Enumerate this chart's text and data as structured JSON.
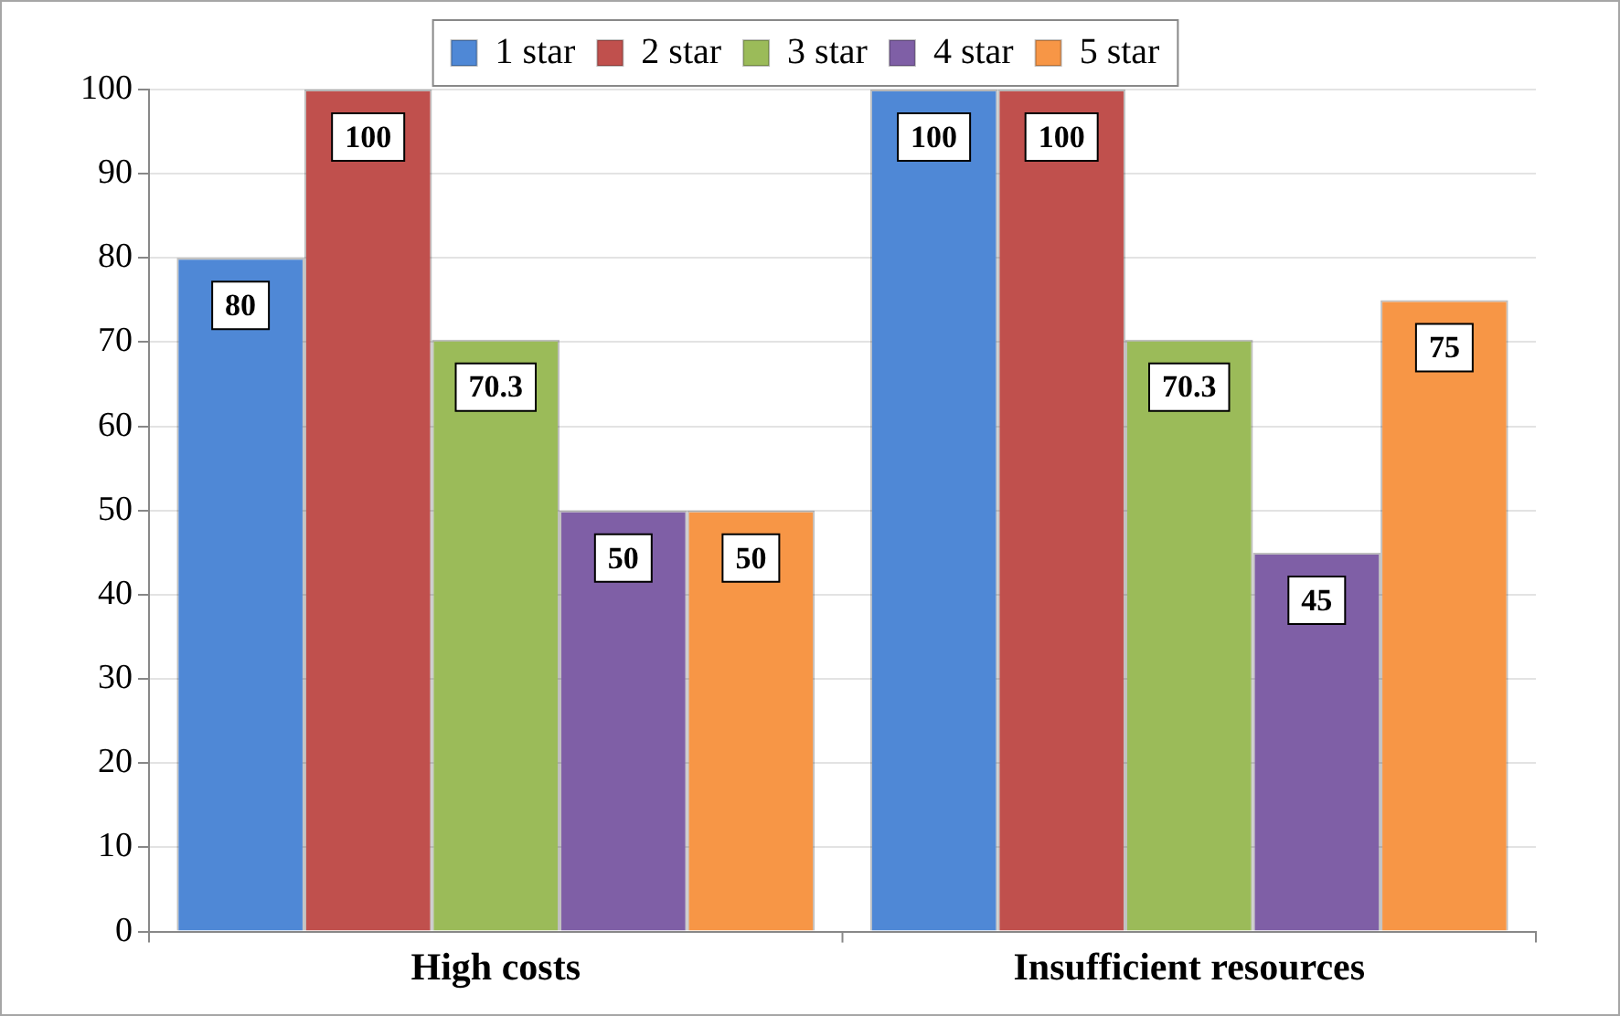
{
  "chart_data": {
    "type": "bar",
    "categories": [
      "High costs",
      "Insufficient resources"
    ],
    "series": [
      {
        "name": "1 star",
        "color": "#4f88d6",
        "values": [
          80,
          100
        ]
      },
      {
        "name": "2 star",
        "color": "#c0504d",
        "values": [
          100,
          100
        ]
      },
      {
        "name": "3 star",
        "color": "#9bbb59",
        "values": [
          70.3,
          70.3
        ]
      },
      {
        "name": "4 star",
        "color": "#7f5fa6",
        "values": [
          50,
          45
        ]
      },
      {
        "name": "5 star",
        "color": "#f79646",
        "values": [
          50,
          75
        ]
      }
    ],
    "ylim": [
      0,
      100
    ],
    "yticks": [
      0,
      10,
      20,
      30,
      40,
      50,
      60,
      70,
      80,
      90,
      100
    ],
    "grid": "y",
    "legend": "top",
    "data_labels": true
  }
}
